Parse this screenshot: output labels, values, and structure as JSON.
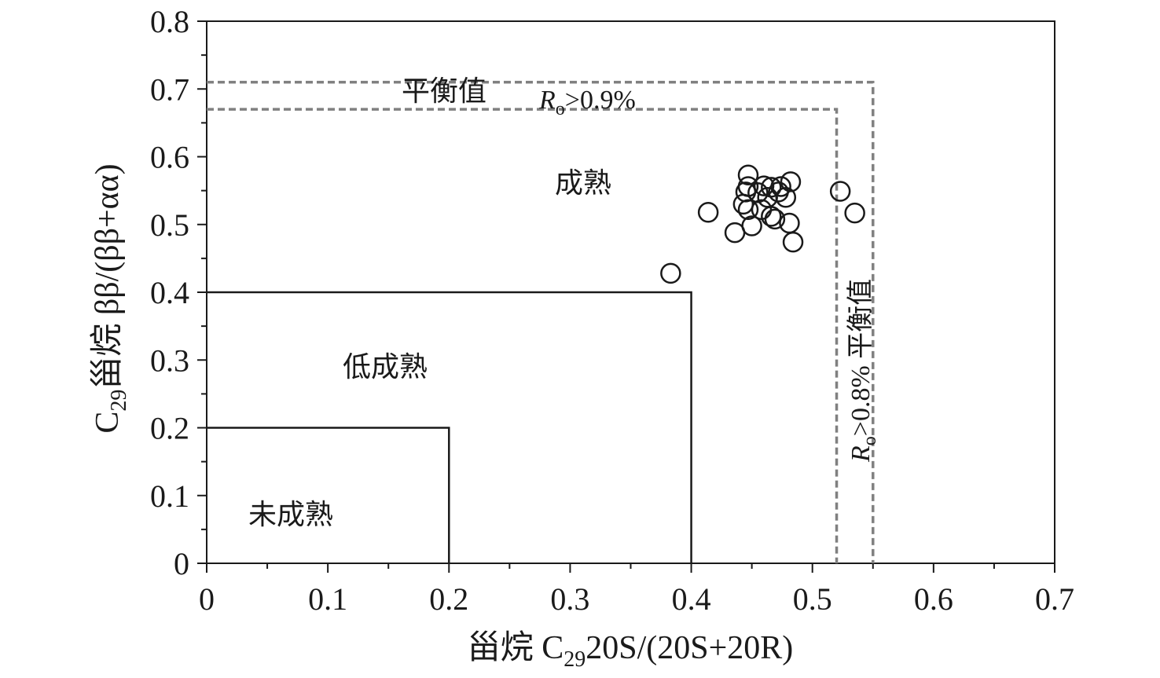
{
  "chart_data": {
    "type": "scatter",
    "xlabel": {
      "pre": "甾烷 C",
      "sub": "29",
      "post": "20S/(20S+20R)"
    },
    "ylabel": {
      "pre": "C",
      "sub": "29",
      "post": "甾烷 ββ/(ββ+αα)"
    },
    "xlim": [
      0,
      0.7
    ],
    "ylim": [
      0,
      0.8
    ],
    "x_ticks": [
      "0",
      "0.1",
      "0.2",
      "0.3",
      "0.4",
      "0.5",
      "0.6",
      "0.7"
    ],
    "y_ticks": [
      "0",
      "0.1",
      "0.2",
      "0.3",
      "0.4",
      "0.5",
      "0.6",
      "0.7",
      "0.8"
    ],
    "grid": false,
    "regions": [
      {
        "label": "未成熟",
        "x_max": 0.2,
        "y_max": 0.2
      },
      {
        "label": "低成熟",
        "x_max": 0.4,
        "y_max": 0.4
      },
      {
        "label": "成熟"
      }
    ],
    "equilibrium_lines": [
      {
        "axis": "x",
        "value": 0.52,
        "label": {
          "pre": "R",
          "sub": "o",
          "post": ">0.8%  平衡值"
        }
      },
      {
        "axis": "x",
        "value": 0.55
      },
      {
        "axis": "y",
        "value": 0.67,
        "label": {
          "pre": "R",
          "sub": "o",
          "post": ">0.9%"
        }
      },
      {
        "axis": "y",
        "value": 0.71,
        "label": {
          "text": "平衡值"
        }
      }
    ],
    "points": [
      {
        "x": 0.383,
        "y": 0.428
      },
      {
        "x": 0.414,
        "y": 0.518
      },
      {
        "x": 0.436,
        "y": 0.488
      },
      {
        "x": 0.447,
        "y": 0.573
      },
      {
        "x": 0.445,
        "y": 0.548
      },
      {
        "x": 0.447,
        "y": 0.556
      },
      {
        "x": 0.443,
        "y": 0.53
      },
      {
        "x": 0.447,
        "y": 0.522
      },
      {
        "x": 0.45,
        "y": 0.498
      },
      {
        "x": 0.455,
        "y": 0.547
      },
      {
        "x": 0.458,
        "y": 0.522
      },
      {
        "x": 0.46,
        "y": 0.557
      },
      {
        "x": 0.463,
        "y": 0.54
      },
      {
        "x": 0.466,
        "y": 0.555
      },
      {
        "x": 0.466,
        "y": 0.512
      },
      {
        "x": 0.469,
        "y": 0.508
      },
      {
        "x": 0.472,
        "y": 0.548
      },
      {
        "x": 0.474,
        "y": 0.556
      },
      {
        "x": 0.478,
        "y": 0.54
      },
      {
        "x": 0.482,
        "y": 0.563
      },
      {
        "x": 0.481,
        "y": 0.502
      },
      {
        "x": 0.484,
        "y": 0.474
      },
      {
        "x": 0.523,
        "y": 0.549
      },
      {
        "x": 0.535,
        "y": 0.517
      }
    ]
  }
}
